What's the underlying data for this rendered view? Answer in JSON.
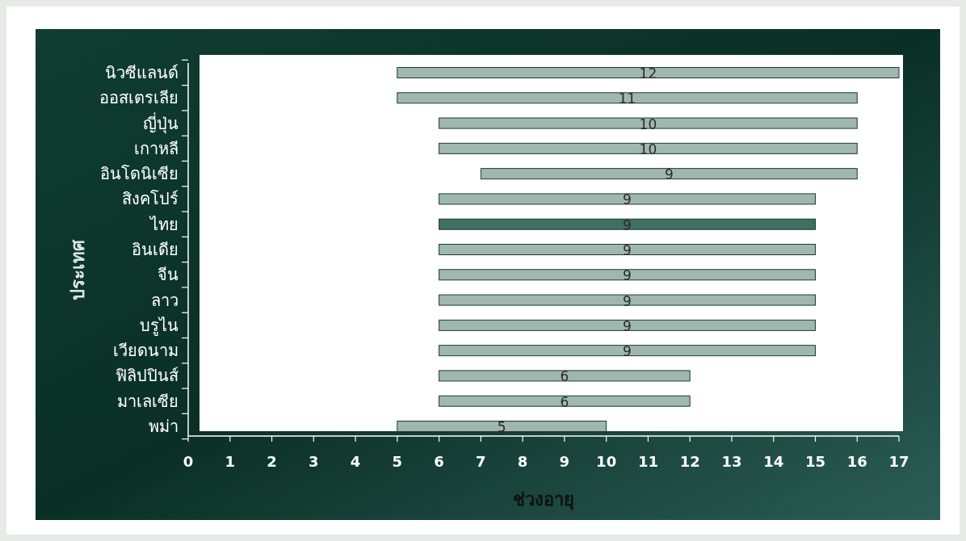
{
  "chart_data": {
    "type": "bar",
    "orientation": "horizontal",
    "xlabel": "ช่วงอายุ",
    "ylabel": "ประเทศ",
    "categories": [
      "นิวซีแลนด์",
      "ออสเตรเลีย",
      "ญี่ปุ่น",
      "เกาหลี",
      "อินโดนิเซีย",
      "สิงคโปร์",
      "ไทย",
      "อินเดีย",
      "จีน",
      "ลาว",
      "บรูไน",
      "เวียดนาม",
      "ฟิลิปปินส์",
      "มาเลเซีย",
      "พม่า"
    ],
    "base": [
      5,
      5,
      6,
      6,
      7,
      6,
      6,
      6,
      6,
      6,
      6,
      6,
      6,
      6,
      5
    ],
    "values": [
      12,
      11,
      10,
      10,
      9,
      9,
      9,
      9,
      9,
      9,
      9,
      9,
      6,
      6,
      5
    ],
    "colors": [
      "#9fb7af",
      "#9fb7af",
      "#9fb7af",
      "#9fb7af",
      "#9fb7af",
      "#9fb7af",
      "#3f6e62",
      "#9fb7af",
      "#9fb7af",
      "#9fb7af",
      "#9fb7af",
      "#9fb7af",
      "#9fb7af",
      "#9fb7af",
      "#9fb7af"
    ],
    "data_labels": true,
    "grid": false,
    "xlim": [
      0,
      17
    ],
    "xticks": [
      0,
      1,
      2,
      3,
      4,
      5,
      6,
      7,
      8,
      9,
      10,
      11,
      12,
      13,
      14,
      15,
      16,
      17
    ]
  }
}
